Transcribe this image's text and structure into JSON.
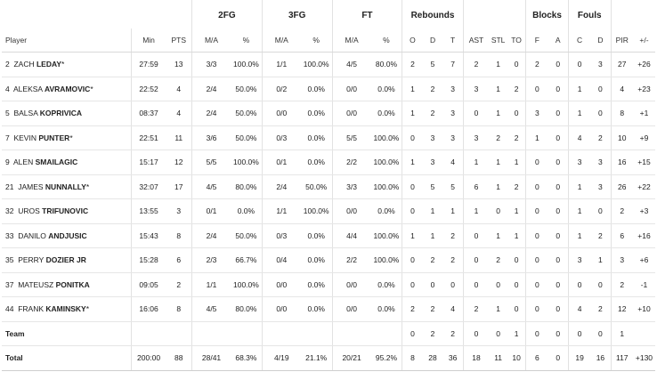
{
  "groups": {
    "fg2": "2FG",
    "fg3": "3FG",
    "ft": "FT",
    "rebounds": "Rebounds",
    "blocks": "Blocks",
    "fouls": "Fouls"
  },
  "columns": {
    "player": "Player",
    "min": "Min",
    "pts": "PTS",
    "fg2_ma": "M/A",
    "fg2_pct": "%",
    "fg3_ma": "M/A",
    "fg3_pct": "%",
    "ft_ma": "M/A",
    "ft_pct": "%",
    "reb_o": "O",
    "reb_d": "D",
    "reb_t": "T",
    "ast": "AST",
    "stl": "STL",
    "to": "TO",
    "blk_f": "F",
    "blk_a": "A",
    "foul_c": "C",
    "foul_d": "D",
    "pir": "PIR",
    "pm": "+/-"
  },
  "players": [
    {
      "num": "2",
      "first": "ZACH",
      "last": "LEDAY",
      "star": "*",
      "min": "27:59",
      "pts": "13",
      "fg2": "3/3",
      "fg2p": "100.0%",
      "fg3": "1/1",
      "fg3p": "100.0%",
      "ft": "4/5",
      "ftp": "80.0%",
      "o": "2",
      "d": "5",
      "t": "7",
      "ast": "2",
      "stl": "1",
      "to": "0",
      "bf": "2",
      "ba": "0",
      "fc": "0",
      "fd": "3",
      "pir": "27",
      "pm": "+26"
    },
    {
      "num": "4",
      "first": "ALEKSA",
      "last": "AVRAMOVIC",
      "star": "*",
      "min": "22:52",
      "pts": "4",
      "fg2": "2/4",
      "fg2p": "50.0%",
      "fg3": "0/2",
      "fg3p": "0.0%",
      "ft": "0/0",
      "ftp": "0.0%",
      "o": "1",
      "d": "2",
      "t": "3",
      "ast": "3",
      "stl": "1",
      "to": "2",
      "bf": "0",
      "ba": "0",
      "fc": "1",
      "fd": "0",
      "pir": "4",
      "pm": "+23"
    },
    {
      "num": "5",
      "first": "BALSA",
      "last": "KOPRIVICA",
      "star": "",
      "min": "08:37",
      "pts": "4",
      "fg2": "2/4",
      "fg2p": "50.0%",
      "fg3": "0/0",
      "fg3p": "0.0%",
      "ft": "0/0",
      "ftp": "0.0%",
      "o": "1",
      "d": "2",
      "t": "3",
      "ast": "0",
      "stl": "1",
      "to": "0",
      "bf": "3",
      "ba": "0",
      "fc": "1",
      "fd": "0",
      "pir": "8",
      "pm": "+1"
    },
    {
      "num": "7",
      "first": "KEVIN",
      "last": "PUNTER",
      "star": "*",
      "min": "22:51",
      "pts": "11",
      "fg2": "3/6",
      "fg2p": "50.0%",
      "fg3": "0/3",
      "fg3p": "0.0%",
      "ft": "5/5",
      "ftp": "100.0%",
      "o": "0",
      "d": "3",
      "t": "3",
      "ast": "3",
      "stl": "2",
      "to": "2",
      "bf": "1",
      "ba": "0",
      "fc": "4",
      "fd": "2",
      "pir": "10",
      "pm": "+9"
    },
    {
      "num": "9",
      "first": "ALEN",
      "last": "SMAILAGIC",
      "star": "",
      "min": "15:17",
      "pts": "12",
      "fg2": "5/5",
      "fg2p": "100.0%",
      "fg3": "0/1",
      "fg3p": "0.0%",
      "ft": "2/2",
      "ftp": "100.0%",
      "o": "1",
      "d": "3",
      "t": "4",
      "ast": "1",
      "stl": "1",
      "to": "1",
      "bf": "0",
      "ba": "0",
      "fc": "3",
      "fd": "3",
      "pir": "16",
      "pm": "+15"
    },
    {
      "num": "21",
      "first": "JAMES",
      "last": "NUNNALLY",
      "star": "*",
      "min": "32:07",
      "pts": "17",
      "fg2": "4/5",
      "fg2p": "80.0%",
      "fg3": "2/4",
      "fg3p": "50.0%",
      "ft": "3/3",
      "ftp": "100.0%",
      "o": "0",
      "d": "5",
      "t": "5",
      "ast": "6",
      "stl": "1",
      "to": "2",
      "bf": "0",
      "ba": "0",
      "fc": "1",
      "fd": "3",
      "pir": "26",
      "pm": "+22"
    },
    {
      "num": "32",
      "first": "UROS",
      "last": "TRIFUNOVIC",
      "star": "",
      "min": "13:55",
      "pts": "3",
      "fg2": "0/1",
      "fg2p": "0.0%",
      "fg3": "1/1",
      "fg3p": "100.0%",
      "ft": "0/0",
      "ftp": "0.0%",
      "o": "0",
      "d": "1",
      "t": "1",
      "ast": "1",
      "stl": "0",
      "to": "1",
      "bf": "0",
      "ba": "0",
      "fc": "1",
      "fd": "0",
      "pir": "2",
      "pm": "+3"
    },
    {
      "num": "33",
      "first": "DANILO",
      "last": "ANDJUSIC",
      "star": "",
      "min": "15:43",
      "pts": "8",
      "fg2": "2/4",
      "fg2p": "50.0%",
      "fg3": "0/3",
      "fg3p": "0.0%",
      "ft": "4/4",
      "ftp": "100.0%",
      "o": "1",
      "d": "1",
      "t": "2",
      "ast": "0",
      "stl": "1",
      "to": "1",
      "bf": "0",
      "ba": "0",
      "fc": "1",
      "fd": "2",
      "pir": "6",
      "pm": "+16"
    },
    {
      "num": "35",
      "first": "PERRY",
      "last": "DOZIER JR",
      "star": "",
      "min": "15:28",
      "pts": "6",
      "fg2": "2/3",
      "fg2p": "66.7%",
      "fg3": "0/4",
      "fg3p": "0.0%",
      "ft": "2/2",
      "ftp": "100.0%",
      "o": "0",
      "d": "2",
      "t": "2",
      "ast": "0",
      "stl": "2",
      "to": "0",
      "bf": "0",
      "ba": "0",
      "fc": "3",
      "fd": "1",
      "pir": "3",
      "pm": "+6"
    },
    {
      "num": "37",
      "first": "MATEUSZ",
      "last": "PONITKA",
      "star": "",
      "min": "09:05",
      "pts": "2",
      "fg2": "1/1",
      "fg2p": "100.0%",
      "fg3": "0/0",
      "fg3p": "0.0%",
      "ft": "0/0",
      "ftp": "0.0%",
      "o": "0",
      "d": "0",
      "t": "0",
      "ast": "0",
      "stl": "0",
      "to": "0",
      "bf": "0",
      "ba": "0",
      "fc": "0",
      "fd": "0",
      "pir": "2",
      "pm": "-1"
    },
    {
      "num": "44",
      "first": "FRANK",
      "last": "KAMINSKY",
      "star": "*",
      "min": "16:06",
      "pts": "8",
      "fg2": "4/5",
      "fg2p": "80.0%",
      "fg3": "0/0",
      "fg3p": "0.0%",
      "ft": "0/0",
      "ftp": "0.0%",
      "o": "2",
      "d": "2",
      "t": "4",
      "ast": "2",
      "stl": "1",
      "to": "0",
      "bf": "0",
      "ba": "0",
      "fc": "4",
      "fd": "2",
      "pir": "12",
      "pm": "+10"
    }
  ],
  "team": {
    "label": "Team",
    "o": "0",
    "d": "2",
    "t": "2",
    "ast": "0",
    "stl": "0",
    "to": "1",
    "bf": "0",
    "ba": "0",
    "fc": "0",
    "fd": "0",
    "pir": "1"
  },
  "total": {
    "label": "Total",
    "min": "200:00",
    "pts": "88",
    "fg2": "28/41",
    "fg2p": "68.3%",
    "fg3": "4/19",
    "fg3p": "21.1%",
    "ft": "20/21",
    "ftp": "95.2%",
    "o": "8",
    "d": "28",
    "t": "36",
    "ast": "18",
    "stl": "11",
    "to": "10",
    "bf": "6",
    "ba": "0",
    "fc": "19",
    "fd": "16",
    "pir": "117",
    "pm": "+130"
  }
}
